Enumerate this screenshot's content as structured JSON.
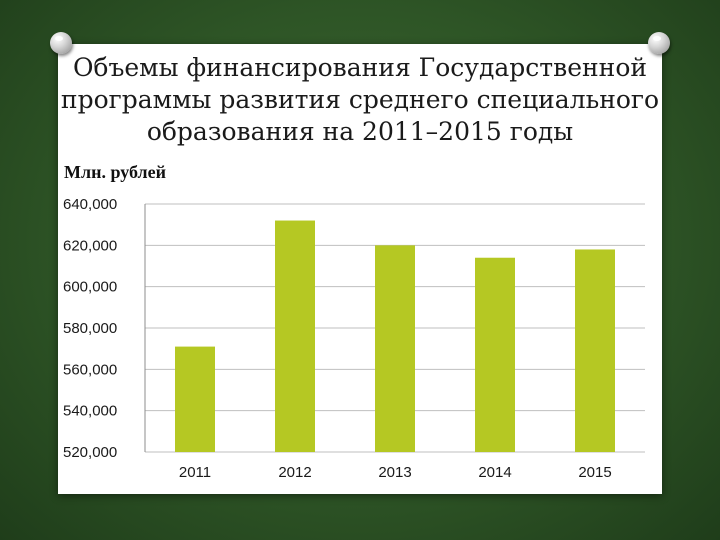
{
  "slide": {
    "title_line1": "Объемы финансирования Государственной",
    "title_line2": "программы развития среднего специального",
    "title_line3": "образования на 2011–2015 годы"
  },
  "chart_data": {
    "type": "bar",
    "title": "Объемы финансирования Государственной программы развития среднего специального образования на 2011–2015 годы",
    "ylabel": "Млн. рублей",
    "xlabel": "",
    "categories": [
      "2011",
      "2012",
      "2013",
      "2014",
      "2015"
    ],
    "values": [
      571000,
      632000,
      620000,
      614000,
      618000
    ],
    "ylim": [
      520000,
      640000
    ],
    "yticks": [
      640000,
      620000,
      600000,
      580000,
      560000,
      540000,
      520000
    ],
    "ytick_labels": [
      "640,000",
      "620,000",
      "600,000",
      "580,000",
      "560,000",
      "540,000",
      "520,000"
    ],
    "grid": true,
    "legend": "none",
    "bar_color": "#b5c823",
    "grid_color": "#bfbfbf"
  }
}
